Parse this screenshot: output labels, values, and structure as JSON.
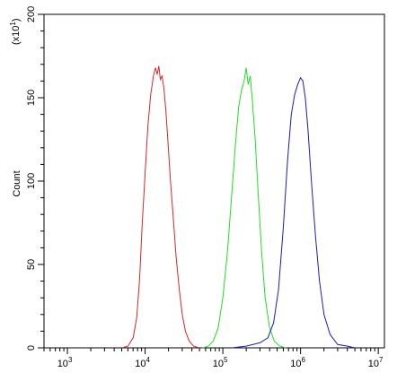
{
  "chart_data": {
    "type": "line",
    "title": "",
    "xlabel": "",
    "ylabel": "Count",
    "y_multiplier_label": "(x10",
    "y_multiplier_exp": "1",
    "y_multiplier_close": ")",
    "x_scale": "log",
    "xlim": [
      500,
      12000000
    ],
    "ylim": [
      0,
      200
    ],
    "x_ticks": [
      {
        "value": 1000,
        "base": "10",
        "exp": "3"
      },
      {
        "value": 10000,
        "base": "10",
        "exp": "4"
      },
      {
        "value": 100000,
        "base": "10",
        "exp": "5"
      },
      {
        "value": 1000000,
        "base": "10",
        "exp": "6"
      },
      {
        "value": 10000000,
        "base": "10",
        "exp": "7"
      }
    ],
    "y_ticks": [
      "0",
      "50",
      "100",
      "150",
      "200"
    ],
    "y_tick_values": [
      0,
      50,
      100,
      150,
      200
    ],
    "grid": false,
    "legend": "none",
    "series": [
      {
        "color": "#d62728",
        "points": [
          [
            5000,
            0
          ],
          [
            6000,
            1
          ],
          [
            7000,
            6
          ],
          [
            7800,
            18
          ],
          [
            8500,
            42
          ],
          [
            9200,
            75
          ],
          [
            10000,
            105
          ],
          [
            10800,
            132
          ],
          [
            11800,
            152
          ],
          [
            12800,
            163
          ],
          [
            13600,
            168
          ],
          [
            14300,
            164
          ],
          [
            15000,
            169
          ],
          [
            15700,
            161
          ],
          [
            16500,
            163
          ],
          [
            17500,
            155
          ],
          [
            18500,
            142
          ],
          [
            19800,
            122
          ],
          [
            21200,
            100
          ],
          [
            23000,
            78
          ],
          [
            25000,
            55
          ],
          [
            27500,
            35
          ],
          [
            30000,
            20
          ],
          [
            33000,
            10
          ],
          [
            37000,
            4
          ],
          [
            42000,
            1
          ],
          [
            50000,
            0
          ]
        ]
      },
      {
        "color": "#22dd22",
        "points": [
          [
            55000,
            0
          ],
          [
            65000,
            1
          ],
          [
            75000,
            4
          ],
          [
            87000,
            12
          ],
          [
            100000,
            30
          ],
          [
            115000,
            58
          ],
          [
            130000,
            92
          ],
          [
            145000,
            122
          ],
          [
            160000,
            145
          ],
          [
            175000,
            155
          ],
          [
            188000,
            160
          ],
          [
            200000,
            168
          ],
          [
            212000,
            158
          ],
          [
            225000,
            163
          ],
          [
            240000,
            148
          ],
          [
            260000,
            126
          ],
          [
            285000,
            92
          ],
          [
            315000,
            58
          ],
          [
            350000,
            30
          ],
          [
            400000,
            12
          ],
          [
            460000,
            4
          ],
          [
            540000,
            1
          ],
          [
            650000,
            0
          ]
        ]
      },
      {
        "color": "#1c1cb8",
        "points": [
          [
            130000,
            0
          ],
          [
            200000,
            1
          ],
          [
            300000,
            3
          ],
          [
            380000,
            6
          ],
          [
            450000,
            15
          ],
          [
            520000,
            35
          ],
          [
            600000,
            72
          ],
          [
            680000,
            112
          ],
          [
            760000,
            140
          ],
          [
            840000,
            152
          ],
          [
            920000,
            158
          ],
          [
            1000000,
            162
          ],
          [
            1070000,
            160
          ],
          [
            1150000,
            150
          ],
          [
            1250000,
            130
          ],
          [
            1380000,
            100
          ],
          [
            1550000,
            68
          ],
          [
            1750000,
            40
          ],
          [
            2000000,
            20
          ],
          [
            2400000,
            8
          ],
          [
            3000000,
            2
          ],
          [
            4000000,
            1
          ],
          [
            5000000,
            0
          ]
        ]
      }
    ]
  }
}
